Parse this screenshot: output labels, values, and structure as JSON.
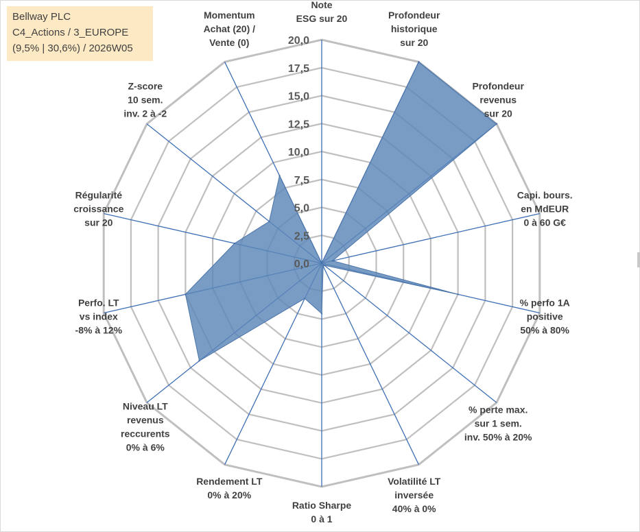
{
  "infobox": {
    "line1": "Bellway PLC",
    "line2": "C4_Actions / 3_EUROPE",
    "line3": "(9,5% | 30,6%) / 2026W05"
  },
  "colors": {
    "fill": "#5b86b8",
    "stroke": "#4a73a8",
    "ring": "#bfbfbf",
    "spoke": "#3d6fb5",
    "infobox_bg": "#fde9c4"
  },
  "chart_data": {
    "type": "radar",
    "title": "",
    "rmin": 0,
    "rmax": 20,
    "ticks": [
      "0,0",
      "2,5",
      "5,0",
      "7,5",
      "10,0",
      "12,5",
      "15,0",
      "17,5",
      "20,0"
    ],
    "categories": [
      [
        "Note",
        "ESG sur 20"
      ],
      [
        "Profondeur",
        "historique",
        "sur 20"
      ],
      [
        "Profondeur",
        "revenus",
        "sur 20"
      ],
      [
        "Capi. bours.",
        "en MdEUR",
        "0 à 60 G€"
      ],
      [
        "% perfo 1A",
        "positive",
        "50% à 80%"
      ],
      [
        "% perte max.",
        "sur 1 sem.",
        "inv. 50% à 20%"
      ],
      [
        "Volatilité LT",
        "inversée",
        "40% à 0%"
      ],
      [
        "Ratio Sharpe",
        "0 à 1"
      ],
      [
        "Rendement LT",
        "0% à 20%"
      ],
      [
        "Niveau LT",
        "revenus",
        "reccurents",
        "0% à 6%"
      ],
      [
        "Perfo. LT",
        "vs index",
        "-8% à 12%"
      ],
      [
        "Régularité",
        "croissance",
        "sur 20"
      ],
      [
        "Z-score",
        "10 sem.",
        "inv. 2 à -2"
      ],
      [
        "Momentum",
        "Achat (20) /",
        "Vente (0)"
      ]
    ],
    "values": [
      0,
      20,
      20,
      1,
      12.5,
      0.3,
      0.3,
      4.5,
      3.5,
      14,
      12.5,
      8,
      6,
      8.7
    ]
  }
}
